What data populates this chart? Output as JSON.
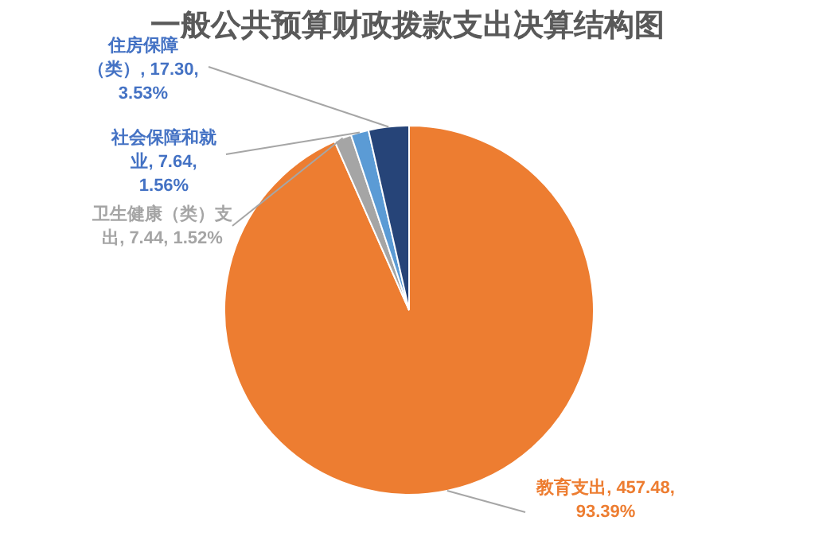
{
  "chart_data": {
    "type": "pie",
    "title": "一般公共预算财政拨款支出决算结构图",
    "categories": [
      "教育支出",
      "卫生健康（类）支出",
      "社会保障和就业",
      "住房保障（类）"
    ],
    "values": [
      457.48,
      7.44,
      7.64,
      17.3
    ],
    "value_labels": [
      "457.48, 93.39%",
      "7.44, 1.52%",
      "7.64, 1.56%",
      "17.30, 3.53%"
    ],
    "colors": [
      "#ed7d31",
      "#a5a5a5",
      "#5b9bd5",
      "#264478"
    ]
  }
}
